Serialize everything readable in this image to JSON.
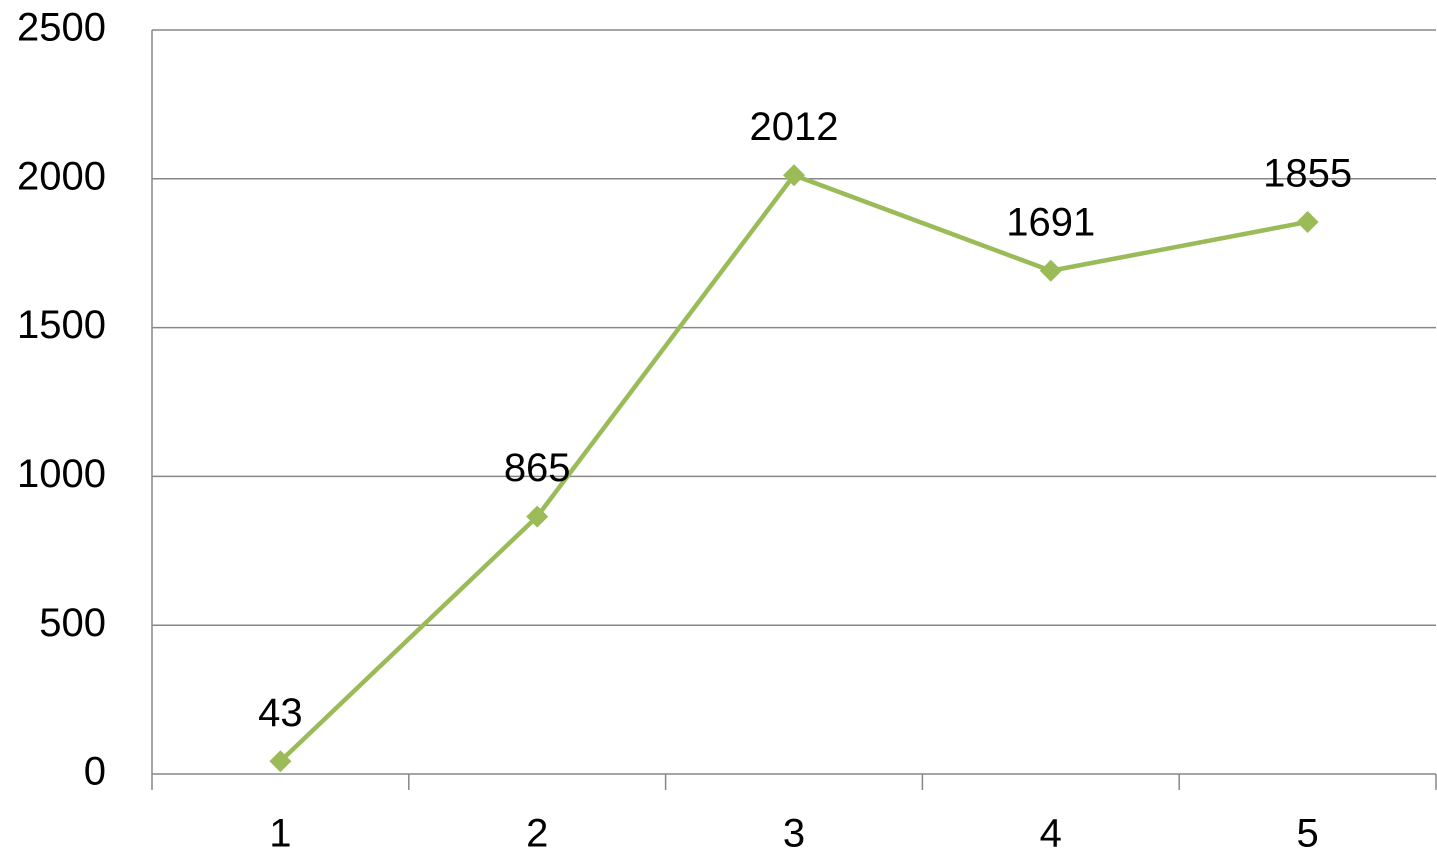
{
  "chart_data": {
    "type": "line",
    "categories": [
      "1",
      "2",
      "3",
      "4",
      "5"
    ],
    "series": [
      {
        "color": "#9bbb59",
        "values": [
          43,
          865,
          2012,
          1691,
          1855
        ]
      }
    ],
    "ylim": [
      0,
      2500
    ],
    "yticks": [
      0,
      500,
      1000,
      1500,
      2000,
      2500
    ],
    "grid": true
  }
}
